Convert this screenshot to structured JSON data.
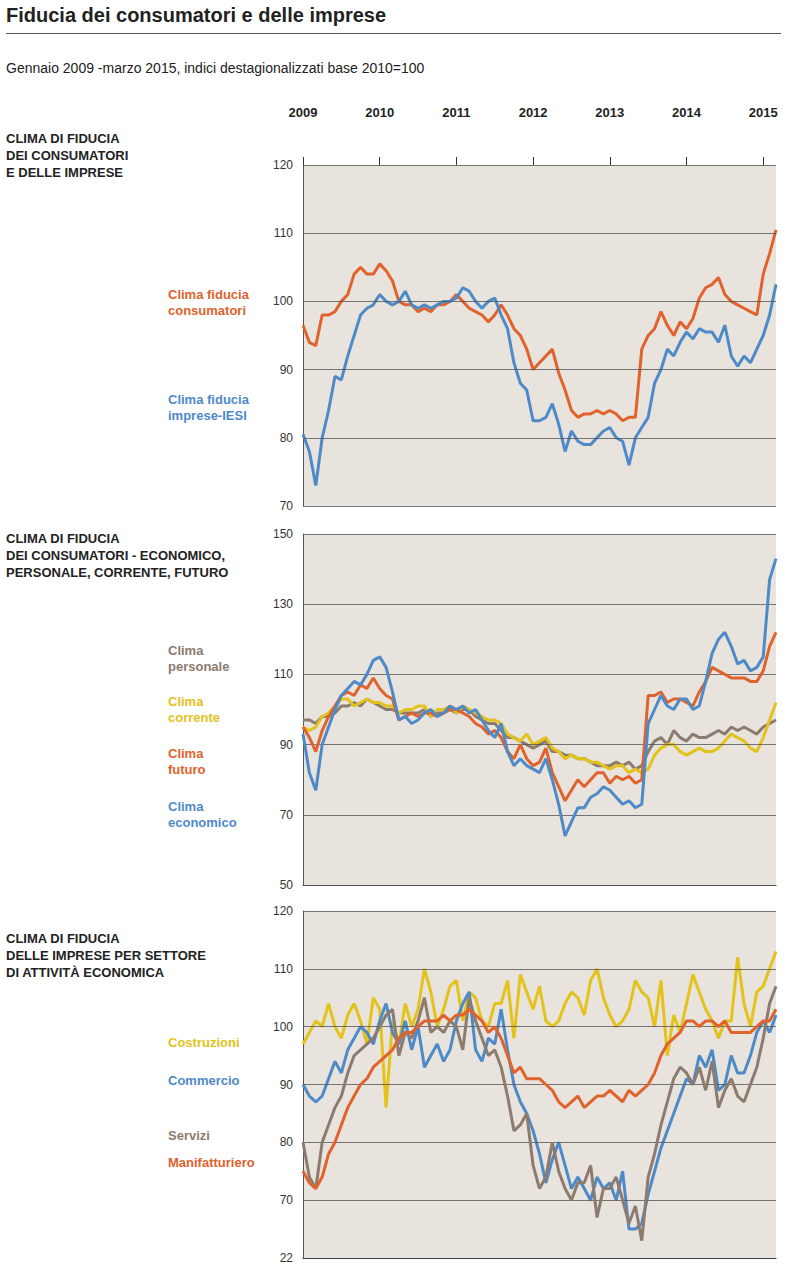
{
  "title": "Fiducia dei consumatori e delle imprese",
  "subtitle": "Gennaio 2009 -marzo 2015, indici destagionalizzati base 2010=100",
  "chart_data": [
    {
      "type": "line",
      "title": "CLIMA DI FIDUCIA\nDEI CONSUMATORI\nE DELLE IMPRESE",
      "categories": [
        "2009",
        null,
        null,
        null,
        null,
        null,
        null,
        null,
        null,
        null,
        null,
        null,
        "2010",
        null,
        null,
        null,
        null,
        null,
        null,
        null,
        null,
        null,
        null,
        null,
        "2011",
        null,
        null,
        null,
        null,
        null,
        null,
        null,
        null,
        null,
        null,
        null,
        "2012",
        null,
        null,
        null,
        null,
        null,
        null,
        null,
        null,
        null,
        null,
        null,
        "2013",
        null,
        null,
        null,
        null,
        null,
        null,
        null,
        null,
        null,
        null,
        null,
        "2014",
        null,
        null,
        null,
        null,
        null,
        null,
        null,
        null,
        null,
        null,
        null,
        "2015",
        null,
        null
      ],
      "series": [
        {
          "name": "Clima fiducia\nconsumatori",
          "color": "#e0622d",
          "values": [
            96.5,
            94,
            93.5,
            98,
            98,
            98.5,
            100,
            101,
            104,
            105,
            104,
            104,
            105.5,
            104.5,
            103,
            100,
            99.5,
            99.5,
            98.5,
            99,
            98.5,
            99.5,
            99.5,
            100,
            101,
            100,
            99,
            98.5,
            98,
            97,
            98,
            99.5,
            98,
            96,
            95,
            93,
            90,
            91,
            92,
            93,
            89.5,
            87,
            84,
            83,
            83.5,
            83.5,
            84,
            83.5,
            84,
            83.5,
            82.5,
            83,
            83,
            93,
            95,
            96,
            98.5,
            96.5,
            95,
            97,
            96,
            97.5,
            100.5,
            102,
            102.5,
            103.5,
            101,
            100,
            99.5,
            99,
            98.5,
            98,
            104,
            107,
            110.5
          ]
        },
        {
          "name": "Clima fiducia\nimprese-IESI",
          "color": "#4e8ac8",
          "values": [
            80.5,
            78,
            73,
            80,
            84,
            89,
            88.5,
            92,
            95,
            98,
            99,
            99.5,
            101,
            100,
            99.5,
            100,
            101.5,
            99.5,
            99,
            99.5,
            99,
            99.5,
            100,
            100,
            100.5,
            102,
            101.5,
            100,
            99,
            100,
            100.5,
            98,
            96,
            91,
            88,
            87,
            82.5,
            82.5,
            83,
            85,
            82,
            78,
            81,
            79.5,
            79,
            79,
            80,
            81,
            81.5,
            80,
            79.5,
            76,
            80,
            81.5,
            83,
            88,
            90,
            93,
            92,
            94,
            95.5,
            94.5,
            96,
            95.5,
            95.5,
            94,
            96.5,
            92,
            90.5,
            92,
            91,
            93,
            95,
            98,
            102.5
          ]
        }
      ],
      "ylim": [
        70,
        120
      ],
      "yticks": [
        70,
        80,
        90,
        100,
        110,
        120
      ],
      "grid": true
    },
    {
      "type": "line",
      "title": "CLIMA DI FIDUCIA\nDEI CONSUMATORI - ECONOMICO,\nPERSONALE, CORRENTE, FUTURO",
      "categories": [
        "2009",
        null,
        null,
        null,
        null,
        null,
        null,
        null,
        null,
        null,
        null,
        null,
        "2010",
        null,
        null,
        null,
        null,
        null,
        null,
        null,
        null,
        null,
        null,
        null,
        "2011",
        null,
        null,
        null,
        null,
        null,
        null,
        null,
        null,
        null,
        null,
        null,
        "2012",
        null,
        null,
        null,
        null,
        null,
        null,
        null,
        null,
        null,
        null,
        null,
        "2013",
        null,
        null,
        null,
        null,
        null,
        null,
        null,
        null,
        null,
        null,
        null,
        "2014",
        null,
        null,
        null,
        null,
        null,
        null,
        null,
        null,
        null,
        null,
        null,
        "2015",
        null,
        null
      ],
      "series": [
        {
          "name": "Clima\npersonale",
          "color": "#8c7b6e",
          "values": [
            97,
            97,
            96,
            98,
            98,
            99,
            101,
            101,
            102,
            101,
            103,
            102,
            101,
            100,
            100,
            99,
            99,
            99,
            99,
            100,
            98,
            99,
            99,
            100,
            99,
            100,
            100,
            98,
            97,
            96,
            96,
            94,
            92,
            92,
            91,
            90,
            89,
            90,
            91,
            88,
            88,
            87,
            87,
            86,
            86,
            85,
            84,
            84,
            84,
            85,
            84,
            85,
            83,
            84,
            88,
            91,
            92,
            90,
            94,
            92,
            91,
            93,
            92,
            92,
            93,
            94,
            93,
            95,
            94,
            95,
            94,
            93,
            95,
            96,
            97
          ]
        },
        {
          "name": "Clima\ncorrente",
          "color": "#e3c21b",
          "values": [
            95,
            94,
            95,
            98,
            99,
            101,
            103,
            103,
            101,
            102,
            103,
            102,
            102,
            101,
            101,
            99,
            100,
            100,
            101,
            101,
            98,
            100,
            100,
            101,
            99,
            101,
            100,
            99,
            98,
            97,
            97,
            96,
            93,
            92,
            91,
            93,
            90,
            91,
            92,
            89,
            88,
            86,
            87,
            86,
            86,
            85,
            85,
            84,
            83,
            84,
            84,
            82,
            83,
            82,
            83,
            87,
            89,
            90,
            90,
            88,
            87,
            88,
            89,
            88,
            88,
            89,
            91,
            93,
            92,
            91,
            89,
            88,
            92,
            97,
            102
          ]
        },
        {
          "name": "Clima\nfuturo",
          "color": "#e0622d",
          "values": [
            95,
            92,
            88,
            94,
            98,
            101,
            104,
            105,
            104,
            107,
            106,
            109,
            106,
            104,
            103,
            97,
            98,
            99,
            98,
            99,
            99,
            98,
            99,
            100,
            100,
            99,
            98,
            96,
            95,
            93,
            94,
            92,
            88,
            86,
            90,
            86,
            84,
            85,
            89,
            82,
            78,
            74,
            77,
            80,
            78,
            80,
            82,
            82,
            79,
            81,
            80,
            81,
            79,
            80,
            104,
            104,
            105,
            102,
            103,
            103,
            102,
            101,
            105,
            108,
            112,
            111,
            110,
            109,
            109,
            109,
            108,
            108,
            111,
            118,
            122
          ]
        },
        {
          "name": "Clima\neconomico",
          "color": "#4e8ac8",
          "values": [
            93,
            82,
            77,
            90,
            95,
            100,
            104,
            106,
            108,
            107,
            110,
            114,
            115,
            112,
            105,
            97,
            98,
            96,
            97,
            99,
            100,
            98,
            99,
            101,
            100,
            101,
            99,
            100,
            97,
            94,
            92,
            96,
            88,
            84,
            86,
            84,
            83,
            82,
            86,
            80,
            73,
            64,
            68,
            72,
            72,
            75,
            76,
            78,
            77,
            75,
            73,
            74,
            72,
            73,
            96,
            100,
            104,
            101,
            100,
            103,
            103,
            100,
            101,
            108,
            116,
            120,
            122,
            118,
            113,
            114,
            111,
            112,
            115,
            137,
            143
          ]
        }
      ],
      "ylim": [
        50,
        150
      ],
      "yticks": [
        50,
        70,
        90,
        110,
        130,
        150
      ],
      "grid": true,
      "tick_labels": "y"
    },
    {
      "type": "line",
      "title": "CLIMA DI FIDUCIA\nDELLE IMPRESE PER SETTORE\nDI ATTIVITÀ ECONOMICA",
      "categories": [
        "2009",
        null,
        null,
        null,
        null,
        null,
        null,
        null,
        null,
        null,
        null,
        null,
        "2010",
        null,
        null,
        null,
        null,
        null,
        null,
        null,
        null,
        null,
        null,
        null,
        "2011",
        null,
        null,
        null,
        null,
        null,
        null,
        null,
        null,
        null,
        null,
        null,
        "2012",
        null,
        null,
        null,
        null,
        null,
        null,
        null,
        null,
        null,
        null,
        null,
        "2013",
        null,
        null,
        null,
        null,
        null,
        null,
        null,
        null,
        null,
        null,
        null,
        "2014",
        null,
        null,
        null,
        null,
        null,
        null,
        null,
        null,
        null,
        null,
        null,
        "2015",
        null,
        null
      ],
      "series": [
        {
          "name": "Costruzioni",
          "color": "#e3c21b",
          "values": [
            97,
            99,
            101,
            100,
            104,
            100,
            98,
            102,
            104,
            101,
            97,
            105,
            103,
            86,
            101,
            97,
            104,
            100,
            103,
            110,
            106,
            100,
            103,
            107,
            108,
            101,
            106,
            105,
            101,
            100,
            104,
            104,
            108,
            98,
            109,
            106,
            103,
            107,
            101,
            100,
            101,
            104,
            106,
            105,
            102,
            108,
            110,
            105,
            102,
            100,
            101,
            103,
            108,
            106,
            105,
            100,
            108,
            95,
            102,
            99,
            104,
            109,
            106,
            103,
            101,
            98,
            101,
            101,
            112,
            104,
            100,
            106,
            107,
            110,
            113
          ]
        },
        {
          "name": "Commercio",
          "color": "#4e8ac8",
          "values": [
            90,
            88,
            87,
            88,
            91,
            94,
            92,
            96,
            98,
            100,
            99,
            97,
            101,
            104,
            99,
            97,
            101,
            96,
            100,
            93,
            95,
            97,
            94,
            96,
            101,
            104,
            106,
            96,
            94,
            98,
            97,
            103,
            96,
            90,
            87,
            85,
            82,
            78,
            73,
            77,
            80,
            76,
            72,
            74,
            72,
            70,
            74,
            72,
            73,
            70,
            75,
            65,
            65,
            66,
            71,
            75,
            79,
            82,
            85,
            88,
            91,
            90,
            95,
            93,
            96,
            89,
            90,
            95,
            92,
            92,
            95,
            99,
            101,
            99,
            102
          ]
        },
        {
          "name": "Servizi",
          "color": "#8c7b6e",
          "values": [
            80,
            74,
            72,
            80,
            83,
            86,
            88,
            92,
            95,
            96,
            97,
            98,
            100,
            102,
            103,
            95,
            99,
            98,
            101,
            105,
            99,
            100,
            99,
            101,
            100,
            96,
            105,
            101,
            98,
            95,
            96,
            93,
            88,
            82,
            83,
            85,
            76,
            72,
            74,
            80,
            75,
            72,
            70,
            73,
            73,
            76,
            67,
            72,
            72,
            74,
            70,
            66,
            69,
            63,
            74,
            78,
            83,
            87,
            91,
            93,
            92,
            90,
            93,
            89,
            94,
            86,
            89,
            91,
            88,
            87,
            90,
            93,
            98,
            104,
            107
          ]
        },
        {
          "name": "Manifatturiero",
          "color": "#e0622d",
          "values": [
            75,
            73,
            72,
            74,
            78,
            80,
            83,
            86,
            88,
            90,
            91,
            93,
            94,
            95,
            96,
            98,
            99,
            99,
            100,
            101,
            101,
            101,
            102,
            101,
            102,
            102,
            103,
            102,
            101,
            99,
            100,
            98,
            95,
            92,
            93,
            91,
            91,
            91,
            90,
            89,
            87,
            86,
            87,
            88,
            86,
            87,
            88,
            88,
            89,
            88,
            87,
            89,
            88,
            89,
            90,
            92,
            95,
            97,
            98,
            99,
            101,
            101,
            100,
            101,
            101,
            100,
            101,
            99,
            99,
            99,
            99,
            100,
            101,
            101,
            103
          ]
        }
      ],
      "ylim": [
        60,
        120
      ],
      "yticks": [
        70,
        80,
        90,
        100,
        110,
        120
      ],
      "grid": true,
      "tick_labels": "y",
      "annotations": [
        {
          "text": "22",
          "y": 60
        }
      ]
    }
  ]
}
